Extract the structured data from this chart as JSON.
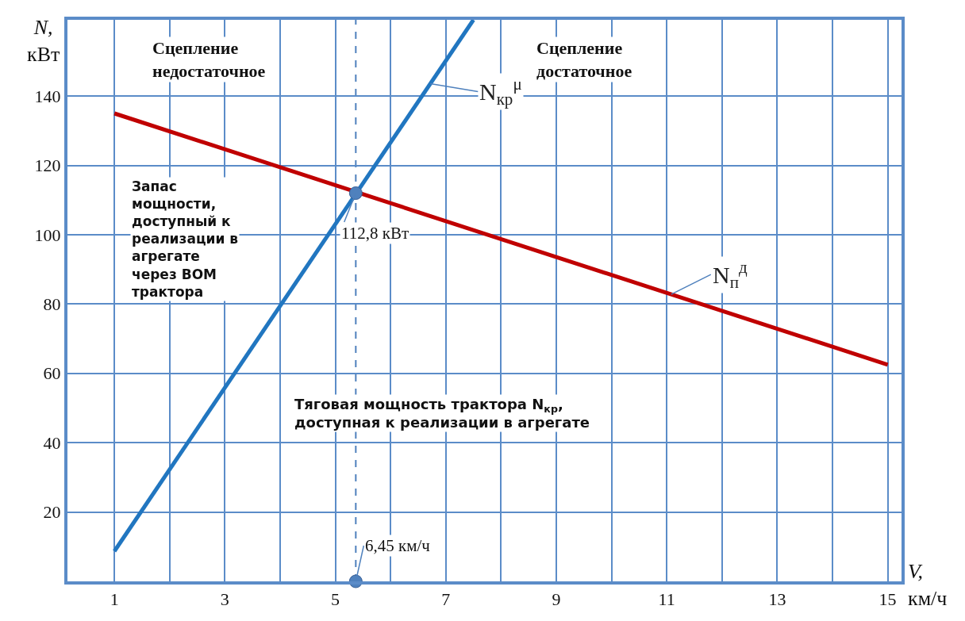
{
  "chart_data": {
    "type": "line",
    "xlabel": "V, км/ч",
    "ylabel": "N, кВт",
    "xlim": [
      0.15,
      15.25
    ],
    "ylim": [
      0,
      162
    ],
    "xticks": [
      1,
      {
        "value": 2,
        "label": null
      },
      3,
      {
        "value": 4,
        "label": null
      },
      5,
      {
        "value": 6,
        "label": null
      },
      7,
      {
        "value": 8,
        "label": null
      },
      9,
      {
        "value": 10,
        "label": null
      },
      11,
      {
        "value": 12,
        "label": null
      },
      13,
      {
        "value": 14,
        "label": null
      },
      15
    ],
    "yticks": [
      20,
      40,
      60,
      80,
      100,
      120,
      140
    ],
    "grid": true,
    "legend": false,
    "marker": "none",
    "line_style": "solid",
    "series": [
      {
        "name": "N$_{кр}$$^{μ}$",
        "color": "#2176c0",
        "x": [
          1,
          7.5
        ],
        "values": [
          8.7,
          162
        ]
      },
      {
        "name": "N$_{п}$$^{д}$",
        "color": "#c00000",
        "x": [
          1,
          15
        ],
        "values": [
          135,
          62.5
        ]
      },
      {
        "type": "scatter",
        "marker": "circle",
        "color": "#4f81bd",
        "x": [
          5.37,
          5.37
        ],
        "values": [
          112,
          0
        ]
      }
    ],
    "ref_lines": [
      {
        "axis": "x",
        "value": 5.37,
        "label": null,
        "color": "#4f81bd",
        "line_style": "dashed"
      }
    ],
    "annotations": [
      "Сцепление недостаточное",
      "Сцепление достаточное",
      "Запас мощности, доступный к реализации в агрегате через ВОМ трактора",
      "Тяговая мощность трактора N$_{кр}$, доступная к реализации в агрегате",
      {
        "text": "112,8 кВт",
        "x": 5.37,
        "y": 112
      },
      {
        "text": "6,45 км/ч",
        "x": 5.37,
        "y": 0
      }
    ]
  }
}
